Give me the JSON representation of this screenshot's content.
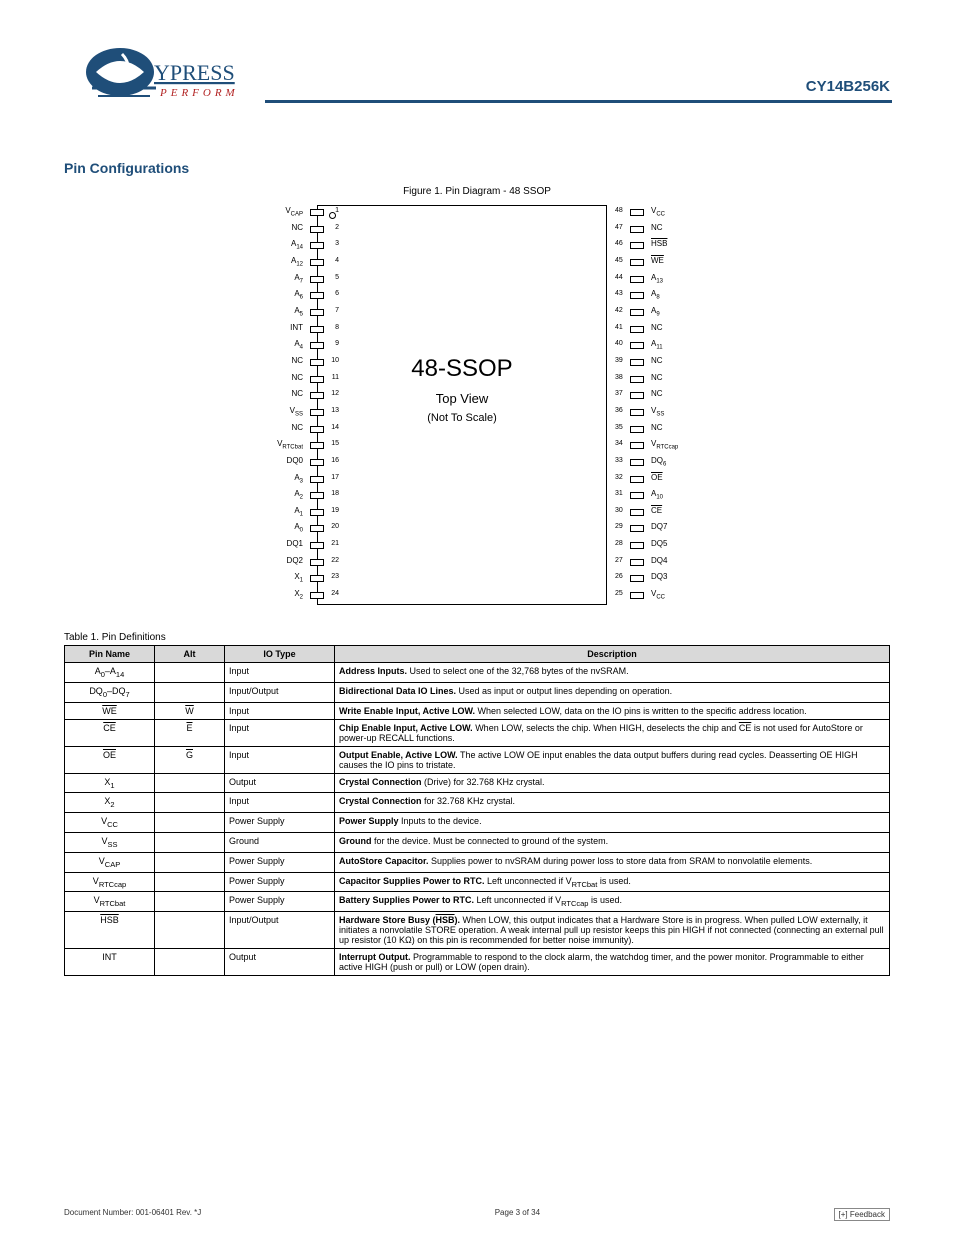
{
  "header": {
    "part_number": "CY14B256K",
    "logo_brand": "CYPRESS",
    "logo_tag": "PERFORM",
    "bar_color": "#1f4e79"
  },
  "section_title": "Pin Configurations",
  "figure_caption": "Figure 1. Pin Diagram - 48 SSOP",
  "chip": {
    "title": "48-SSOP",
    "sub1": "Top View",
    "sub2": "(Not To Scale)",
    "pin_color": "#000000",
    "left_pins": [
      {
        "n": 1,
        "l": "V",
        "s": "CAP"
      },
      {
        "n": 2,
        "l": "NC"
      },
      {
        "n": 3,
        "l": "A",
        "s": "14"
      },
      {
        "n": 4,
        "l": "A",
        "s": "12"
      },
      {
        "n": 5,
        "l": "A",
        "s": "7"
      },
      {
        "n": 6,
        "l": "A",
        "s": "6"
      },
      {
        "n": 7,
        "l": "A",
        "s": "5"
      },
      {
        "n": 8,
        "l": "INT"
      },
      {
        "n": 9,
        "l": "A",
        "s": "4"
      },
      {
        "n": 10,
        "l": "NC"
      },
      {
        "n": 11,
        "l": "NC"
      },
      {
        "n": 12,
        "l": "NC"
      },
      {
        "n": 13,
        "l": "V",
        "s": "SS"
      },
      {
        "n": 14,
        "l": "NC"
      },
      {
        "n": 15,
        "l": "V",
        "s": "RTCbat"
      },
      {
        "n": 16,
        "l": "DQ0"
      },
      {
        "n": 17,
        "l": "A",
        "s": "3"
      },
      {
        "n": 18,
        "l": "A",
        "s": "2"
      },
      {
        "n": 19,
        "l": "A",
        "s": "1"
      },
      {
        "n": 20,
        "l": "A",
        "s": "0"
      },
      {
        "n": 21,
        "l": "DQ1"
      },
      {
        "n": 22,
        "l": "DQ2"
      },
      {
        "n": 23,
        "l": "X",
        "s": "1"
      },
      {
        "n": 24,
        "l": "X",
        "s": "2"
      }
    ],
    "right_pins": [
      {
        "n": 48,
        "l": "V",
        "s": "CC"
      },
      {
        "n": 47,
        "l": "NC"
      },
      {
        "n": 46,
        "l": "HSB",
        "bar": true
      },
      {
        "n": 45,
        "l": "WE",
        "bar": true
      },
      {
        "n": 44,
        "l": "A",
        "s": "13"
      },
      {
        "n": 43,
        "l": "A",
        "s": "8"
      },
      {
        "n": 42,
        "l": "A",
        "s": "9"
      },
      {
        "n": 41,
        "l": "NC"
      },
      {
        "n": 40,
        "l": "A",
        "s": "11"
      },
      {
        "n": 39,
        "l": "NC"
      },
      {
        "n": 38,
        "l": "NC"
      },
      {
        "n": 37,
        "l": "NC"
      },
      {
        "n": 36,
        "l": "V",
        "s": "SS"
      },
      {
        "n": 35,
        "l": "NC"
      },
      {
        "n": 34,
        "l": "V",
        "s": "RTCcap"
      },
      {
        "n": 33,
        "l": "DQ",
        "s": "6"
      },
      {
        "n": 32,
        "l": "OE",
        "bar": true
      },
      {
        "n": 31,
        "l": "A",
        "s": "10"
      },
      {
        "n": 30,
        "l": "CE",
        "bar": true
      },
      {
        "n": 29,
        "l": "DQ7"
      },
      {
        "n": 28,
        "l": "DQ5"
      },
      {
        "n": 27,
        "l": "DQ4"
      },
      {
        "n": 26,
        "l": "DQ3"
      },
      {
        "n": 25,
        "l": "V",
        "s": "CC"
      }
    ]
  },
  "table": {
    "title": "Table 1. Pin Definitions",
    "headers": [
      "Pin Name",
      "Alt",
      "IO Type",
      "Description"
    ],
    "rows": [
      {
        "name": "A<sub>0</sub>–A<sub>14</sub>",
        "alt": "",
        "io": "Input",
        "desc": "<b>Address Inputs.</b> Used to select one of the 32,768 bytes of the nvSRAM."
      },
      {
        "name": "DQ<sub>0</sub>–DQ<sub>7</sub>",
        "alt": "",
        "io": "Input/Output",
        "desc": "<b>Bidirectional Data IO Lines.</b> Used as input or output lines depending on operation."
      },
      {
        "name": "<span class='bar'>WE</span>",
        "alt": "<span class='bar'>W</span>",
        "io": "Input",
        "desc": "<b>Write Enable Input, Active LOW.</b> When selected LOW, data on the IO pins is written to the specific address location."
      },
      {
        "name": "<span class='bar'>CE</span>",
        "alt": "<span class='bar'>E</span>",
        "io": "Input",
        "desc": "<b>Chip Enable Input, Active LOW.</b> When LOW, selects the chip. When HIGH, deselects the chip and <span class='bar'>CE</span> is not used for AutoStore or power-up RECALL functions."
      },
      {
        "name": "<span class='bar'>OE</span>",
        "alt": "<span class='bar'>G</span>",
        "io": "Input",
        "desc": "<b>Output Enable, Active LOW.</b> The active LOW OE input enables the data output buffers during read cycles. Deasserting OE HIGH causes the IO pins to tristate."
      },
      {
        "name": "X<sub>1</sub>",
        "alt": "",
        "io": "Output",
        "desc": "<b>Crystal Connection</b> (Drive) for 32.768 KHz crystal."
      },
      {
        "name": "X<sub>2</sub>",
        "alt": "",
        "io": "Input",
        "desc": "<b>Crystal Connection</b> for 32.768 KHz crystal."
      },
      {
        "name": "V<sub>CC</sub>",
        "alt": "",
        "io": "Power Supply",
        "desc": "<b>Power Supply</b> Inputs to the device."
      },
      {
        "name": "V<sub>SS</sub>",
        "alt": "",
        "io": "Ground",
        "desc": "<b>Ground</b> for the device. Must be connected to ground of the system."
      },
      {
        "name": "V<sub>CAP</sub>",
        "alt": "",
        "io": "Power Supply",
        "desc": "<b>AutoStore Capacitor.</b> Supplies power to nvSRAM during power loss to store data from SRAM to nonvolatile elements."
      },
      {
        "name": "V<sub>RTCcap</sub>",
        "alt": "",
        "io": "Power Supply",
        "desc": "<b>Capacitor Supplies Power to RTC.</b> Left unconnected if V<sub>RTCbat</sub> is used."
      },
      {
        "name": "V<sub>RTCbat</sub>",
        "alt": "",
        "io": "Power Supply",
        "desc": "<b>Battery Supplies Power to RTC.</b> Left unconnected if V<sub>RTCcap</sub> is used."
      },
      {
        "name": "<span class='bar'>HSB</span>",
        "alt": "",
        "io": "Input/Output",
        "desc": "<b>Hardware Store Busy (<span class='bar'>HSB</span>).</b> When LOW, this output indicates that a Hardware Store is in progress. When pulled LOW externally, it initiates a nonvolatile STORE operation. A weak internal pull up resistor keeps this pin HIGH if not connected (connecting an external pull up resistor (10 KΩ) on this pin is recommended for better noise immunity)."
      },
      {
        "name": "INT",
        "alt": "",
        "io": "Output",
        "desc": "<b>Interrupt Output.</b> Programmable to respond to the clock alarm, the watchdog timer, and the power monitor. Programmable to either active HIGH (push or pull) or LOW (open drain)."
      }
    ]
  },
  "footer": {
    "left": "Document Number: 001-06401 Rev. *J",
    "center": "Page 3 of 34",
    "feedback": "[+] Feedback"
  }
}
